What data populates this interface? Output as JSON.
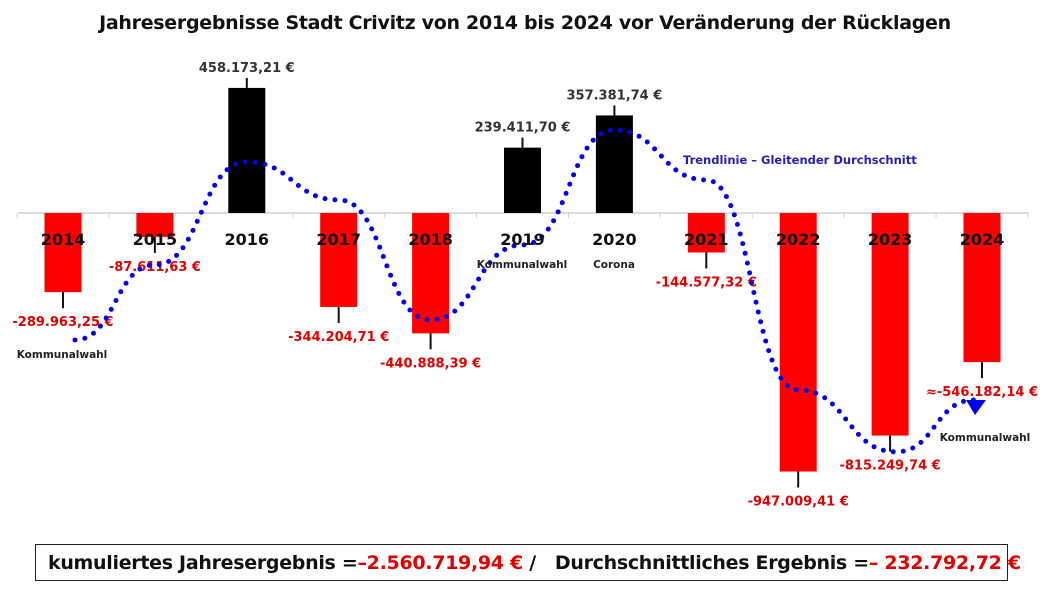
{
  "chart_data": {
    "type": "bar",
    "title": "Jahresergebnisse Stadt Crivitz  von 2014 bis 2024 vor Veränderung der Rücklagen",
    "xlabel": "",
    "ylabel": "",
    "categories": [
      "2014",
      "2015",
      "2016",
      "2017",
      "2018",
      "2019",
      "2020",
      "2021",
      "2022",
      "2023",
      "2024"
    ],
    "values": [
      -289963.25,
      -87611.63,
      458173.21,
      -344204.71,
      -440888.39,
      239411.7,
      357381.74,
      -144577.32,
      -947009.41,
      -815249.74,
      -546182.14
    ],
    "data_labels": [
      "-289.963,25 €",
      "-87.611,63 €",
      "458.173,21 €",
      "-344.204,71 €",
      "-440.888,39 €",
      "239.411,70 €",
      "357.381,74 €",
      "-144.577,32 €",
      "-947.009,41 €",
      "-815.249,74 €",
      "≈-546.182,14 €"
    ],
    "annotations": [
      {
        "category": "2014",
        "text": "Kommunalwahl"
      },
      {
        "category": "2019",
        "text": "Kommunalwahl"
      },
      {
        "category": "2020",
        "text": "Corona"
      },
      {
        "category": "2024",
        "text": "Kommunalwahl"
      }
    ],
    "trendline": {
      "label": "Trendlinie – Gleitender Durchschnitt",
      "approx_values": [
        -465000,
        -190000,
        187000,
        48000,
        -392000,
        -117000,
        304000,
        121000,
        -648000,
        -875000,
        -685000
      ]
    },
    "ylim": [
      -1000000,
      500000
    ],
    "grid": false,
    "colors": {
      "positive": "#000000",
      "negative": "#ff0000",
      "trend": "#0000ee",
      "negative_label": "#e00000",
      "positive_label": "#333333"
    }
  },
  "summary": {
    "cum_label": "kumuliertes Jahresergebnis = ",
    "cum_value": "–2.560.719,94 €",
    "separator": " /   ",
    "avg_label": "Durchschnittliches Ergebnis = ",
    "avg_value": "– 232.792,72 €"
  }
}
